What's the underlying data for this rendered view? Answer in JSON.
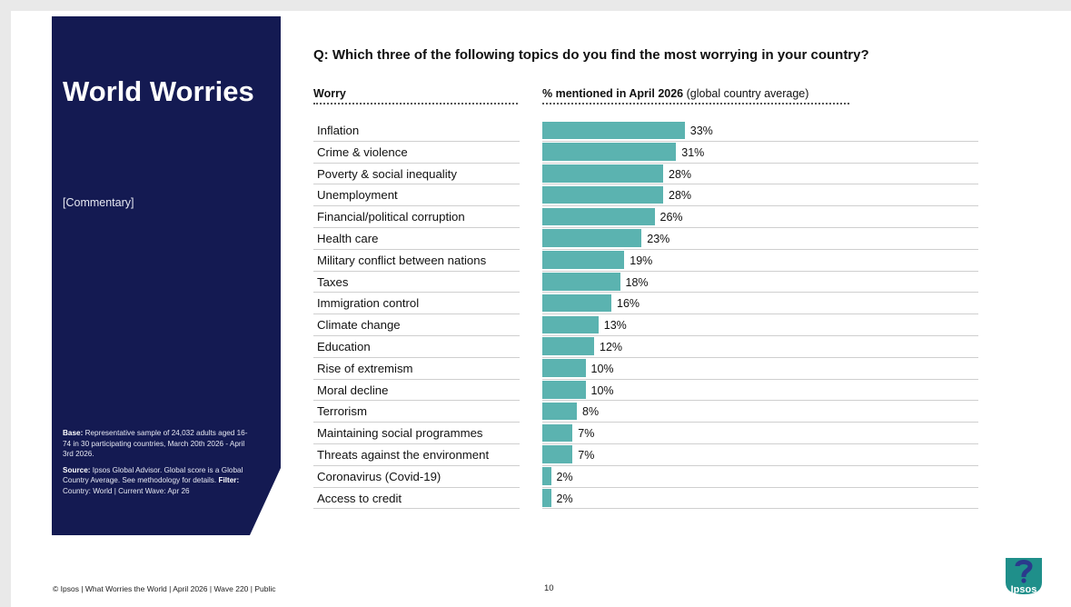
{
  "sidebar": {
    "title": "World Worries",
    "commentary": "[Commentary]",
    "base_label": "Base:",
    "base_text": " Representative sample of 24,032 adults aged 16-74 in 30 participating countries, March 20th 2026 - April 3rd 2026.",
    "source_label": "Source:",
    "source_text": " Ipsos Global Advisor. Global score is a Global Country Average. See methodology for details. ",
    "filter_label": "Filter:",
    "filter_text": " Country: World | Current Wave: Apr 26"
  },
  "question": "Q: Which three of the following topics do you find the most worrying in your country?",
  "headers": {
    "worry": "Worry",
    "pct_bold": "% mentioned in April 2026",
    "pct_rest": " (global country average)"
  },
  "chart_data": {
    "type": "bar",
    "orientation": "horizontal",
    "categories": [
      "Inflation",
      "Crime & violence",
      "Poverty & social inequality",
      "Unemployment",
      "Financial/political corruption",
      "Health care",
      "Military conflict between nations",
      "Taxes",
      "Immigration control",
      "Climate change",
      "Education",
      "Rise of extremism",
      "Moral decline",
      "Terrorism",
      "Maintaining social programmes",
      "Threats against the environment",
      "Coronavirus (Covid-19)",
      "Access to credit"
    ],
    "values": [
      33,
      31,
      28,
      28,
      26,
      23,
      19,
      18,
      16,
      13,
      12,
      10,
      10,
      8,
      7,
      7,
      2,
      2
    ],
    "value_labels": [
      "33%",
      "31%",
      "28%",
      "28%",
      "26%",
      "23%",
      "19%",
      "18%",
      "16%",
      "13%",
      "12%",
      "10%",
      "10%",
      "8%",
      "7%",
      "7%",
      "2%",
      "2%"
    ],
    "bar_color": "#5bb3b0",
    "xlim": [
      0,
      100
    ]
  },
  "footer": {
    "text": "© Ipsos | What Worries the World | April 2026 | Wave 220 | Public",
    "page": "10"
  },
  "logo": {
    "text": "Ipsos",
    "color": "#1f8f8a"
  }
}
